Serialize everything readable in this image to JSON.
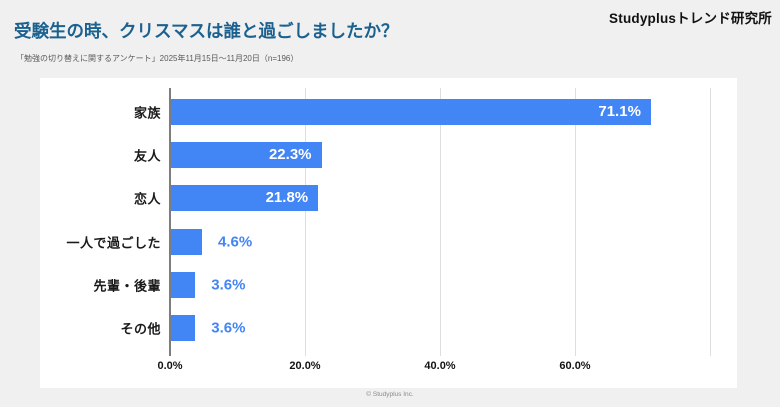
{
  "page": {
    "logo": "Studyplusトレンド研究所",
    "title": "受験生の時、クリスマスは誰と過ごしましたか？",
    "subtitle": "「勉強の切り替えに関するアンケート」2025年11月15日～11月20日（n=196）",
    "footer": "© Studyplus Inc."
  },
  "colors": {
    "page_background": "#f0f0f0",
    "panel_background": "#ffffff",
    "bar": "#4285f4",
    "title_text": "#1b6190",
    "value_label_inside": "#ffffff",
    "value_label_outside": "#4285f4",
    "gridline": "#dedede",
    "axis_line": "#7d7d7d"
  },
  "chart_data": {
    "type": "bar",
    "orientation": "horizontal",
    "title": "受験生の時、クリスマスは誰と過ごしましたか？",
    "categories": [
      "家族",
      "友人",
      "恋人",
      "一人で過ごした",
      "先輩・後輩",
      "その他"
    ],
    "values": [
      71.1,
      22.3,
      21.8,
      4.6,
      3.6,
      3.6
    ],
    "value_labels": [
      "71.1%",
      "22.3%",
      "21.8%",
      "4.6%",
      "3.6%",
      "3.6%"
    ],
    "xlabel": "",
    "ylabel": "",
    "xlim": [
      0,
      80
    ],
    "x_tick_values": [
      0,
      20,
      40,
      60
    ],
    "x_tick_labels": [
      "0.0%",
      "20.0%",
      "40.0%",
      "60.0%"
    ],
    "gridline_values": [
      20,
      40,
      60,
      80
    ],
    "grid": true,
    "legend": false
  }
}
